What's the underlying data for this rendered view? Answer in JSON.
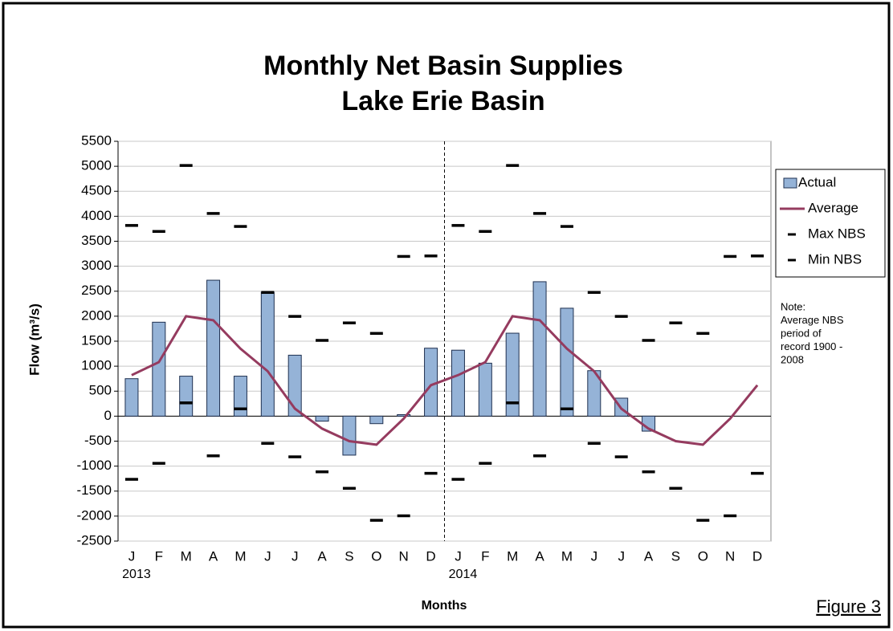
{
  "chart_data": {
    "type": "combo",
    "title": "Monthly Net Basin Supplies",
    "subtitle": "Lake Erie Basin",
    "x_label": "Months",
    "y_label": "Flow (m³/s)",
    "categories": [
      "J",
      "F",
      "M",
      "A",
      "M",
      "J",
      "J",
      "A",
      "S",
      "O",
      "N",
      "D",
      "J",
      "F",
      "M",
      "A",
      "M",
      "J",
      "J",
      "A",
      "S",
      "O",
      "N",
      "D"
    ],
    "years": [
      "2013",
      "2014"
    ],
    "ylim": [
      -2500,
      5500
    ],
    "yticks": [
      -2500,
      -2000,
      -1500,
      -1000,
      -500,
      0,
      500,
      1000,
      1500,
      2000,
      2500,
      3000,
      3500,
      4000,
      4500,
      5000,
      5500
    ],
    "grid": true,
    "legend": "right",
    "series": [
      {
        "name": "Actual",
        "type": "bar",
        "color": "#95b3d7",
        "values": [
          750,
          1880,
          800,
          2720,
          800,
          2480,
          1220,
          -100,
          -780,
          -150,
          30,
          1360,
          1320,
          1060,
          1660,
          2690,
          2160,
          910,
          360,
          -300,
          null,
          null,
          null,
          null
        ]
      },
      {
        "name": "Average",
        "type": "line",
        "color": "#953b5f",
        "values": [
          820,
          1080,
          2000,
          1920,
          1350,
          900,
          150,
          -250,
          -500,
          -570,
          -50,
          620,
          820,
          1080,
          2000,
          1920,
          1350,
          900,
          150,
          -250,
          -500,
          -570,
          -50,
          620
        ]
      },
      {
        "name": "Max NBS",
        "type": "marker",
        "color": "#000000",
        "values": [
          3820,
          3700,
          5020,
          4060,
          3800,
          2480,
          2000,
          1520,
          1870,
          1660,
          3200,
          3210,
          3820,
          3700,
          5020,
          4060,
          3800,
          2480,
          2000,
          1520,
          1870,
          1660,
          3200,
          3210
        ]
      },
      {
        "name": "Min NBS",
        "type": "marker",
        "color": "#000000",
        "values": [
          -1260,
          -940,
          270,
          -790,
          150,
          -540,
          -810,
          -1110,
          -1440,
          -2080,
          -1990,
          -1140,
          -1260,
          -940,
          270,
          -790,
          150,
          -540,
          -810,
          -1110,
          -1440,
          -2080,
          -1990,
          -1140
        ]
      }
    ],
    "note": [
      "Note:",
      "Average NBS",
      "period of",
      "record 1900 -",
      "2008"
    ],
    "figure_label": "Figure 3"
  }
}
